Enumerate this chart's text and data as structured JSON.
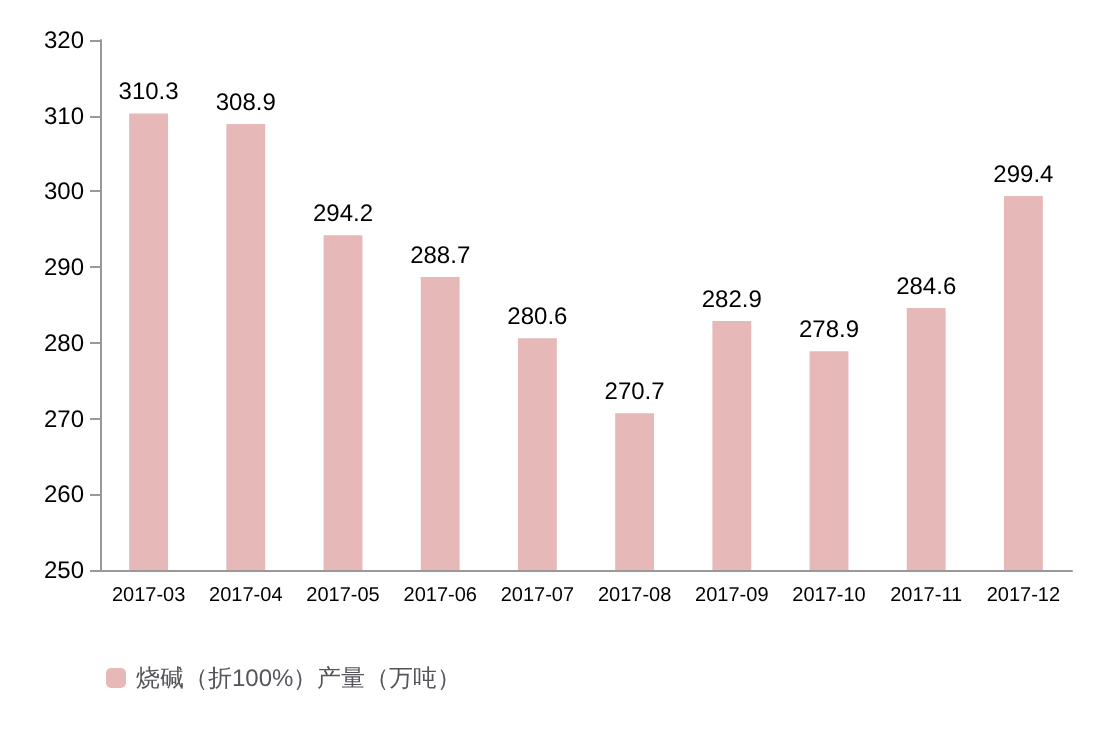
{
  "chart_data": {
    "type": "bar",
    "categories": [
      "2017-03",
      "2017-04",
      "2017-05",
      "2017-06",
      "2017-07",
      "2017-08",
      "2017-09",
      "2017-10",
      "2017-11",
      "2017-12"
    ],
    "series": [
      {
        "name": "烧碱（折100%）产量（万吨）",
        "color": "#e6b9b8",
        "values": [
          310.3,
          308.9,
          294.2,
          288.7,
          280.6,
          270.7,
          282.9,
          278.9,
          284.6,
          299.4
        ]
      }
    ],
    "ylim": [
      250,
      320
    ],
    "yticks": [
      250,
      260,
      270,
      280,
      290,
      300,
      310,
      320
    ],
    "data_labels": true,
    "legend": "bottom left"
  }
}
